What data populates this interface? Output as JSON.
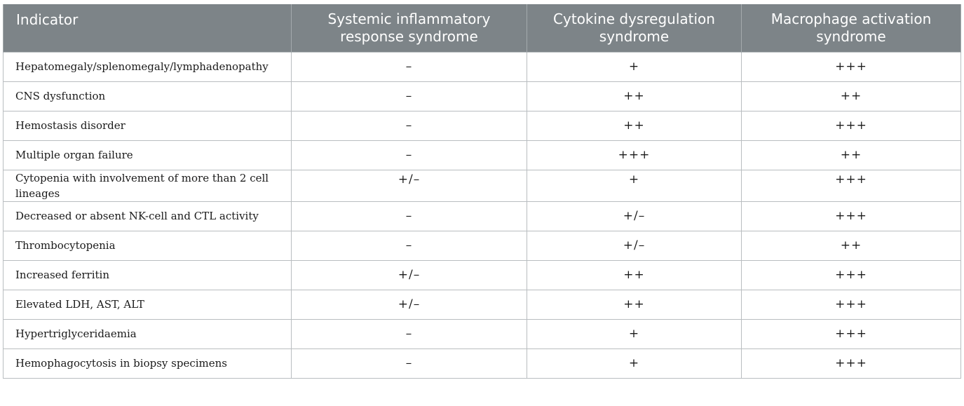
{
  "table": {
    "headers": [
      "Indicator",
      "Systemic inflammatory response syndrome",
      "Cytokine dysregulation syndrome",
      "Macrophage activation syndrome"
    ],
    "rows": [
      [
        "Hepatomegaly/splenomegaly/lymphadenopathy",
        "–",
        "+",
        "+++"
      ],
      [
        "CNS dysfunction",
        "–",
        "++",
        "++"
      ],
      [
        "Hemostasis disorder",
        "–",
        "++",
        "+++"
      ],
      [
        "Multiple organ failure",
        "–",
        "+++",
        "++"
      ],
      [
        "Cytopenia with involvement of more than 2 cell lineages",
        "+/–",
        "+",
        "+++"
      ],
      [
        "Decreased or absent NK-cell and CTL activity",
        "–",
        "+/–",
        "+++"
      ],
      [
        "Thrombocytopenia",
        "–",
        "+/–",
        "++"
      ],
      [
        "Increased ferritin",
        "+/–",
        "++",
        "+++"
      ],
      [
        "Elevated LDH, AST, ALT",
        "+/–",
        "++",
        "+++"
      ],
      [
        "Hypertriglyceridaemia",
        "–",
        "+",
        "+++"
      ],
      [
        "Hemophagocytosis in biopsy specimens",
        "–",
        "+",
        "+++"
      ]
    ]
  }
}
